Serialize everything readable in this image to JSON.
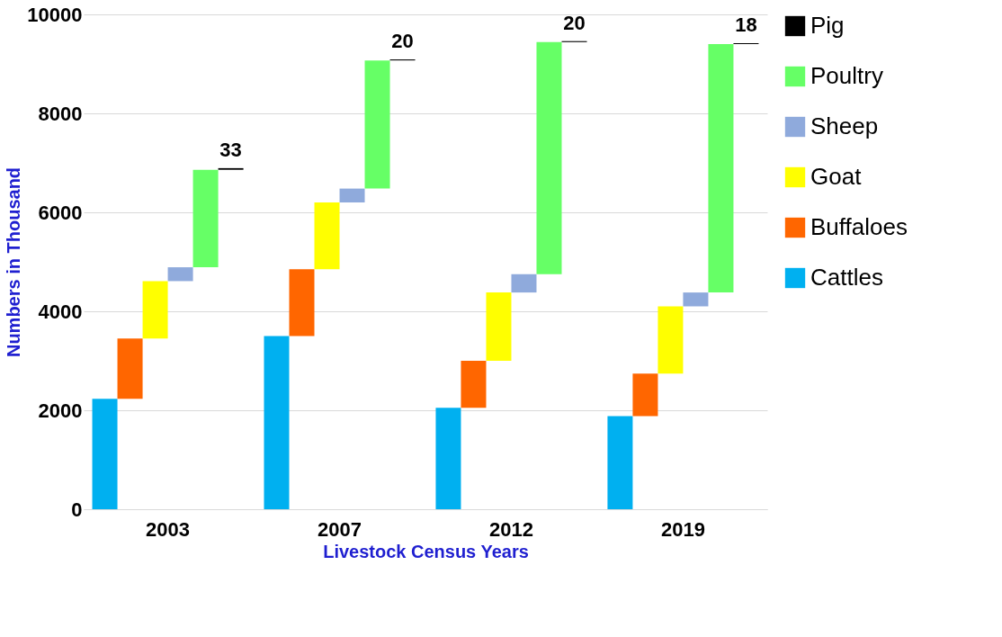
{
  "chart_data": {
    "type": "bar",
    "xlabel": "Livestock Census Years",
    "ylabel": "Numbers  in Thousand",
    "categories": [
      "2003",
      "2007",
      "2012",
      "2019"
    ],
    "series": [
      {
        "name": "Cattles",
        "color": "#00b0f0",
        "values": [
          2230,
          3500,
          2050,
          1880
        ],
        "base": [
          0,
          0,
          0,
          0
        ]
      },
      {
        "name": "Buffaloes",
        "color": "#ff6600",
        "values": [
          1220,
          1350,
          950,
          860
        ],
        "base": [
          2230,
          3500,
          2050,
          1880
        ]
      },
      {
        "name": "Goat",
        "color": "#ffff00",
        "values": [
          1160,
          1350,
          1380,
          1360
        ],
        "base": [
          3450,
          4850,
          3000,
          2740
        ]
      },
      {
        "name": "Sheep",
        "color": "#8faadc",
        "values": [
          280,
          280,
          370,
          280
        ],
        "base": [
          4610,
          6200,
          4380,
          4100
        ]
      },
      {
        "name": "Poultry",
        "color": "#66ff66",
        "values": [
          1970,
          2590,
          4690,
          5020
        ],
        "base": [
          4890,
          6480,
          4750,
          4380
        ]
      },
      {
        "name": "Pig",
        "color": "#000000",
        "values": [
          33,
          20,
          20,
          18
        ],
        "base": [
          6860,
          9070,
          9440,
          9400
        ],
        "value_labels": [
          "33",
          "20",
          "20",
          "18"
        ]
      }
    ],
    "ylim": [
      0,
      10000
    ],
    "yticks": [
      0,
      2000,
      4000,
      6000,
      8000,
      10000
    ],
    "grid": "y",
    "legend": "right"
  }
}
